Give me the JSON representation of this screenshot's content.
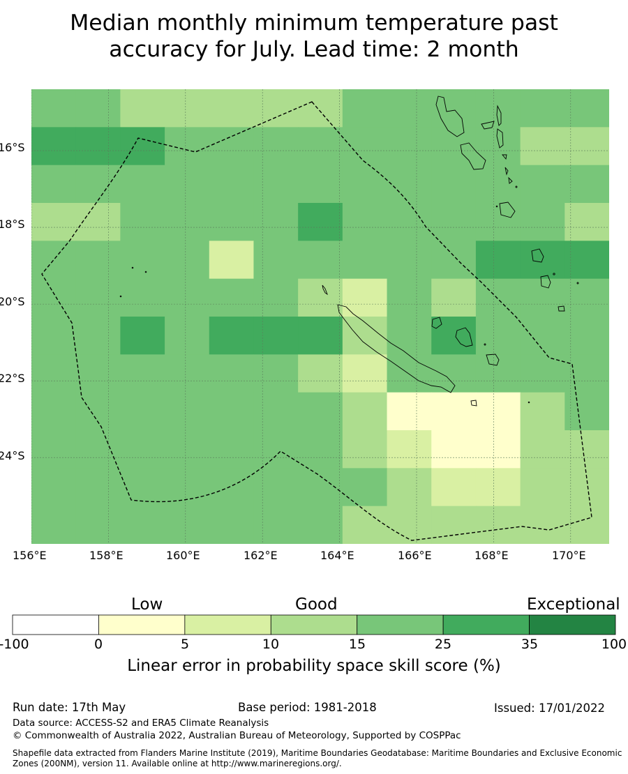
{
  "title": {
    "line1": "Median monthly minimum temperature past",
    "line2": "accuracy for July. Lead time: 2 month"
  },
  "map": {
    "lon_range": [
      156,
      171
    ],
    "lat_range": [
      -26.25,
      -14.4
    ],
    "lon_ticks": [
      "156°E",
      "158°E",
      "160°E",
      "162°E",
      "164°E",
      "166°E",
      "168°E",
      "170°E"
    ],
    "lat_ticks": [
      "16°S",
      "18°S",
      "20°S",
      "22°S",
      "24°S"
    ],
    "grid_cell_deg": 0.833,
    "grid_rows": [
      "4433333444444",
      "5554444444433",
      "4444444444444",
      "3344445444443",
      "4444244444555",
      "4444443243444",
      "4454555345444",
      "4444443244444",
      "4444444311134",
      "4444444321133",
      "4444444432233",
      "4444444333333"
    ]
  },
  "colorbar": {
    "categories": [
      "Low",
      "Good",
      "Exceptional"
    ],
    "ticks": [
      "-100",
      "0",
      "5",
      "10",
      "15",
      "25",
      "35",
      "100"
    ],
    "colors": [
      "#ffffff",
      "#ffffcc",
      "#d9f0a3",
      "#addd8e",
      "#78c679",
      "#41ab5d",
      "#238443"
    ],
    "title": "Linear error in probability space skill score (%)"
  },
  "footer": {
    "run_date": "Run date: 17th May",
    "base_period": "Base period: 1981-2018",
    "issued": "Issued: 17/01/2022",
    "data_source": "Data source: ACCESS-S2 and ERA5 Climate Reanalysis",
    "copyright": "© Commonwealth of Australia 2022, Australian Bureau of Meteorology, Supported by COSPPac",
    "shapefile": "Shapefile data extracted from Flanders Marine Institute (2019), Maritime Boundaries Geodatabase: Maritime Boundaries and Exclusive Economic Zones (200NM), version 11. Available online at http://www.marineregions.org/."
  }
}
